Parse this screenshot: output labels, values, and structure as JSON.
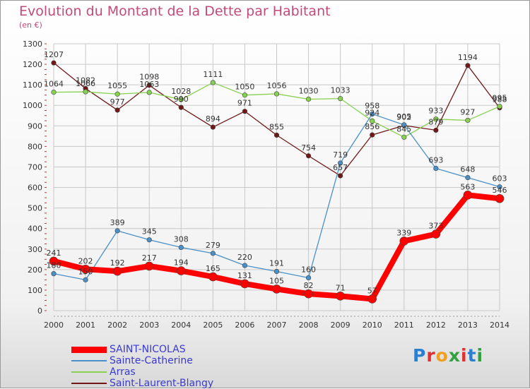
{
  "header": {
    "title": "Evolution du Montant de la Dette par Habitant",
    "unit": "(en €)"
  },
  "brand": {
    "logo_text": "Proxiti",
    "letters": [
      "P",
      "r",
      "o",
      "x",
      "i",
      "t",
      "i"
    ]
  },
  "chart_data": {
    "type": "line",
    "title": "Evolution du Montant de la Dette par Habitant",
    "subtitle": "(en €)",
    "xlabel": "",
    "ylabel": "",
    "x": [
      "2000",
      "2001",
      "2002",
      "2003",
      "2004",
      "2005",
      "2006",
      "2007",
      "2008",
      "2009",
      "2010",
      "2011",
      "2012",
      "2013",
      "2014"
    ],
    "ylim": [
      0,
      1300
    ],
    "yticks": [
      "0",
      "100",
      "200",
      "300",
      "400",
      "500",
      "600",
      "700",
      "800",
      "900",
      "1000",
      "1100",
      "1200",
      "1300"
    ],
    "grid": true,
    "legend_position": "bottom-left",
    "series": [
      {
        "name": "SAINT-NICOLAS",
        "color": "#ff0000",
        "values": [
          241,
          202,
          192,
          217,
          194,
          165,
          131,
          105,
          82,
          71,
          57,
          339,
          373,
          563,
          546
        ],
        "labels": [
          "241",
          "202",
          "192",
          "217",
          "194",
          "165",
          "131",
          "105",
          "82",
          "71",
          "57",
          "339",
          "373",
          "563",
          "546"
        ]
      },
      {
        "name": "Sainte-Catherine",
        "color": "#4a90c8",
        "values": [
          180,
          150,
          389,
          345,
          308,
          279,
          220,
          191,
          160,
          719,
          958,
          905,
          693,
          648,
          603
        ],
        "labels": [
          "180",
          "150",
          "389",
          "345",
          "308",
          "279",
          "220",
          "191",
          "160",
          "719",
          "958",
          "905",
          "693",
          "648",
          "603"
        ]
      },
      {
        "name": "Arras",
        "color": "#88d050",
        "values": [
          1064,
          1066,
          1055,
          1063,
          1028,
          1111,
          1050,
          1056,
          1030,
          1033,
          924,
          845,
          933,
          927,
          995
        ],
        "labels": [
          "1064",
          "1066",
          "1055",
          "1063",
          "1028",
          "1111",
          "1050",
          "1056",
          "1030",
          "1033",
          "924",
          "845",
          "933",
          "927",
          "995"
        ]
      },
      {
        "name": "Saint-Laurent-Blangy",
        "color": "#701818",
        "values": [
          1207,
          1082,
          977,
          1098,
          990,
          894,
          971,
          855,
          754,
          657,
          856,
          902,
          879,
          1194,
          988
        ],
        "labels": [
          "1207",
          "1082",
          "977",
          "1098",
          "990",
          "894",
          "971",
          "855",
          "754",
          "657",
          "856",
          "902",
          "879",
          "1194",
          "988"
        ]
      }
    ]
  }
}
